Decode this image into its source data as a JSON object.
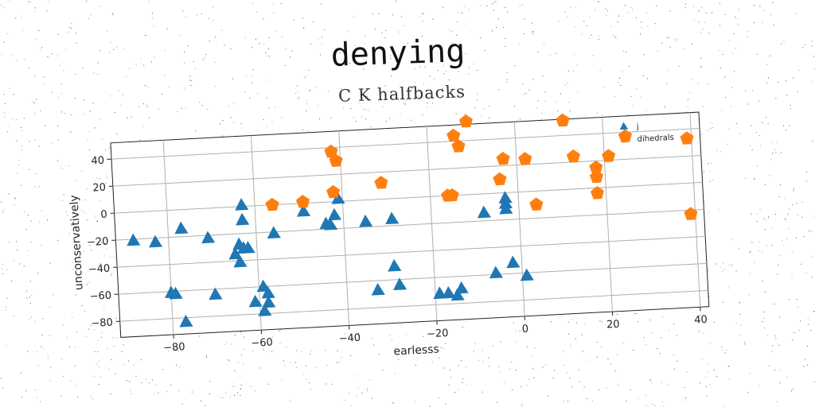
{
  "chart_data": {
    "type": "scatter",
    "title": "denying",
    "subtitle": "C K halfbacks",
    "xlabel": "earlesss",
    "ylabel": "unconservatively",
    "xlim": [
      -92,
      42
    ],
    "ylim": [
      -92,
      52
    ],
    "xticks": [
      -80,
      -60,
      -40,
      -20,
      0,
      20,
      40
    ],
    "yticks": [
      -80,
      -60,
      -40,
      -20,
      0,
      20,
      40
    ],
    "grid": true,
    "legend_position": "top-right",
    "series": [
      {
        "name": "j",
        "marker": "triangle",
        "color": "#1f77b4",
        "points": [
          [
            -88,
            -21
          ],
          [
            -83,
            -23
          ],
          [
            -77,
            -14
          ],
          [
            -71,
            -22
          ],
          [
            -80,
            -61
          ],
          [
            -79,
            -62
          ],
          [
            -77,
            -83
          ],
          [
            -70,
            -64
          ],
          [
            -65,
            -35
          ],
          [
            -64,
            -41
          ],
          [
            -63,
            -31
          ],
          [
            -64,
            -28
          ],
          [
            -62,
            -31
          ],
          [
            -63,
            -10
          ],
          [
            -63,
            1
          ],
          [
            -56,
            -21
          ],
          [
            -58,
            -65
          ],
          [
            -59,
            -60
          ],
          [
            -58,
            -72
          ],
          [
            -59,
            -78
          ],
          [
            -61,
            -71
          ],
          [
            -49,
            -6
          ],
          [
            -44,
            -16
          ],
          [
            -43,
            -17
          ],
          [
            -42,
            -10
          ],
          [
            -41,
            2
          ],
          [
            -35,
            -16
          ],
          [
            -29,
            -15
          ],
          [
            -29,
            -50
          ],
          [
            -33,
            -67
          ],
          [
            -28,
            -64
          ],
          [
            -19,
            -72
          ],
          [
            -17,
            -72
          ],
          [
            -15,
            -74
          ],
          [
            -14,
            -69
          ],
          [
            -8,
            -14
          ],
          [
            -6,
            -59
          ],
          [
            -3,
            -4
          ],
          [
            -3,
            -8
          ],
          [
            -3,
            -12
          ],
          [
            -2,
            -52
          ],
          [
            1,
            -62
          ]
        ]
      },
      {
        "name": "dihedrals",
        "marker": "pentagon",
        "color": "#ff7f0e",
        "points": [
          [
            -56,
            0
          ],
          [
            -49,
            1
          ],
          [
            -42,
            37
          ],
          [
            -41,
            30
          ],
          [
            -42,
            7
          ],
          [
            -31,
            12
          ],
          [
            -16,
            0
          ],
          [
            -15,
            0
          ],
          [
            -14,
            44
          ],
          [
            -13,
            36
          ],
          [
            -11,
            54
          ],
          [
            -4,
            10
          ],
          [
            -3,
            25
          ],
          [
            2,
            24
          ],
          [
            4,
            -10
          ],
          [
            11,
            51
          ],
          [
            13,
            24
          ],
          [
            18,
            -4
          ],
          [
            18,
            8
          ],
          [
            18,
            15
          ],
          [
            21,
            23
          ],
          [
            25,
            37
          ],
          [
            39,
            33
          ],
          [
            39,
            -23
          ]
        ]
      }
    ]
  }
}
